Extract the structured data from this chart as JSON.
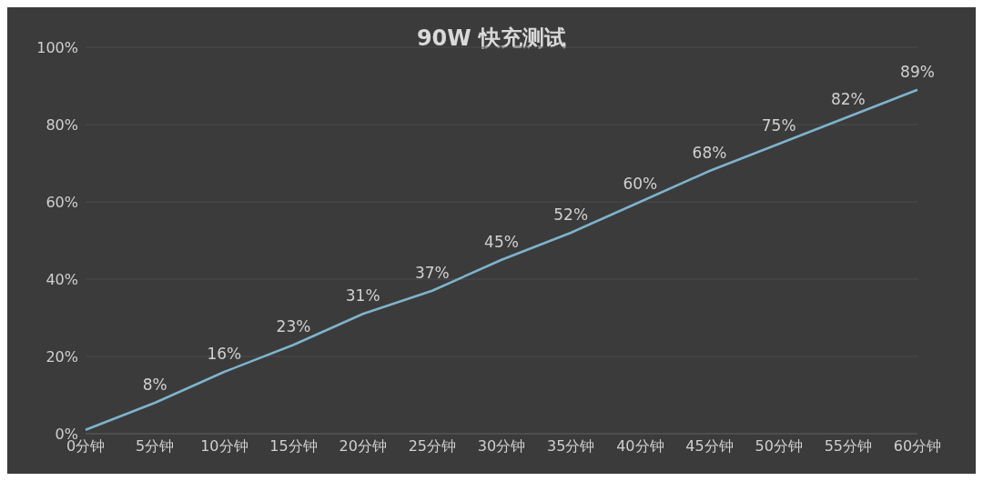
{
  "chart_data": {
    "type": "line",
    "title": "90W 快充测试",
    "categories": [
      "0分钟",
      "5分钟",
      "10分钟",
      "15分钟",
      "20分钟",
      "25分钟",
      "30分钟",
      "35分钟",
      "40分钟",
      "45分钟",
      "50分钟",
      "55分钟",
      "60分钟"
    ],
    "series": [
      {
        "color": "#7fb3cc",
        "values": [
          1,
          8,
          16,
          23,
          31,
          37,
          45,
          52,
          60,
          68,
          75,
          82,
          89
        ],
        "value_labels": [
          null,
          "8%",
          "16%",
          "23%",
          "31%",
          "37%",
          "45%",
          "52%",
          "60%",
          "68%",
          "75%",
          "82%",
          "89%"
        ]
      }
    ],
    "ylim": [
      0,
      100
    ],
    "yticks": [
      {
        "value": 0,
        "label": "0%"
      },
      {
        "value": 20,
        "label": "20%"
      },
      {
        "value": 40,
        "label": "40%"
      },
      {
        "value": 60,
        "label": "60%"
      },
      {
        "value": 80,
        "label": "80%"
      },
      {
        "value": 100,
        "label": "100%"
      }
    ],
    "grid": "y",
    "legend": false,
    "marker": "none",
    "line_style": "solid"
  }
}
